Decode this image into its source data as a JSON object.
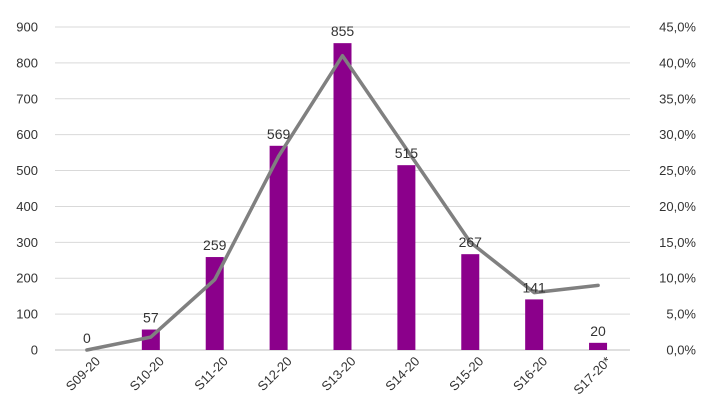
{
  "chart_data": {
    "type": "bar",
    "categories": [
      "S09-20",
      "S10-20",
      "S11-20",
      "S12-20",
      "S13-20",
      "S14-20",
      "S15-20",
      "S16-20",
      "S17-20*"
    ],
    "series": [
      {
        "type": "bar",
        "axis": "left",
        "values": [
          0,
          57,
          259,
          569,
          855,
          515,
          267,
          141,
          20
        ],
        "color": "#8B008B",
        "data_labels": [
          "0",
          "57",
          "259",
          "569",
          "855",
          "515",
          "267",
          "141",
          "20"
        ]
      },
      {
        "type": "line",
        "axis": "right",
        "values": [
          0.0,
          1.8,
          9.8,
          27.0,
          41.0,
          28.0,
          15.0,
          8.0,
          9.0
        ],
        "color": "#808080"
      }
    ],
    "y_left": {
      "range": [
        0,
        900
      ],
      "ticks": [
        0,
        100,
        200,
        300,
        400,
        500,
        600,
        700,
        800,
        900
      ],
      "tick_labels": [
        "0",
        "100",
        "200",
        "300",
        "400",
        "500",
        "600",
        "700",
        "800",
        "900"
      ]
    },
    "y_right": {
      "range": [
        0,
        45
      ],
      "ticks": [
        0,
        5,
        10,
        15,
        20,
        25,
        30,
        35,
        40,
        45
      ],
      "tick_labels": [
        "0,0%",
        "5,0%",
        "10,0%",
        "15,0%",
        "20,0%",
        "25,0%",
        "30,0%",
        "35,0%",
        "40,0%",
        "45,0%"
      ]
    },
    "grid": true,
    "legend": "none",
    "title": "",
    "xlabel": "",
    "ylabel": ""
  }
}
